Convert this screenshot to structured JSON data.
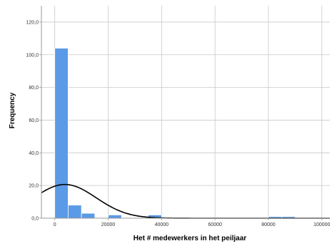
{
  "chart_data": {
    "type": "bar",
    "subtype": "histogram-with-normal-curve",
    "title": "",
    "xlabel": "Het # medewerkers in het peiljaar",
    "ylabel": "Frequency",
    "xlim": [
      -5000,
      103000
    ],
    "ylim": [
      0,
      130
    ],
    "x_ticks": [
      0,
      20000,
      40000,
      60000,
      80000,
      100000
    ],
    "x_tick_labels": [
      "0",
      "20000",
      "40000",
      "60000",
      "80000",
      "100000"
    ],
    "y_ticks": [
      0,
      20,
      40,
      60,
      80,
      100,
      120
    ],
    "y_tick_labels": [
      "0,0",
      "20,0",
      "40,0",
      "60,0",
      "80,0",
      "100,0",
      "120,0"
    ],
    "grid": true,
    "bin_width": 5000,
    "bins": [
      {
        "start": 0,
        "end": 5000,
        "count": 104
      },
      {
        "start": 5000,
        "end": 10000,
        "count": 8
      },
      {
        "start": 10000,
        "end": 15000,
        "count": 3
      },
      {
        "start": 15000,
        "end": 20000,
        "count": 0
      },
      {
        "start": 20000,
        "end": 25000,
        "count": 2
      },
      {
        "start": 25000,
        "end": 30000,
        "count": 0
      },
      {
        "start": 30000,
        "end": 35000,
        "count": 0
      },
      {
        "start": 35000,
        "end": 40000,
        "count": 2
      },
      {
        "start": 40000,
        "end": 45000,
        "count": 0
      },
      {
        "start": 45000,
        "end": 50000,
        "count": 0
      },
      {
        "start": 50000,
        "end": 55000,
        "count": 0
      },
      {
        "start": 55000,
        "end": 60000,
        "count": 0
      },
      {
        "start": 60000,
        "end": 65000,
        "count": 0
      },
      {
        "start": 65000,
        "end": 70000,
        "count": 0
      },
      {
        "start": 70000,
        "end": 75000,
        "count": 0
      },
      {
        "start": 75000,
        "end": 80000,
        "count": 0
      },
      {
        "start": 80000,
        "end": 85000,
        "count": 1
      },
      {
        "start": 85000,
        "end": 90000,
        "count": 1
      }
    ],
    "normal_curve": {
      "mean": 3800,
      "sd": 11700,
      "n": 121
    },
    "colors": {
      "bar": "#5b9ae6",
      "bar_edge": "#ffffff",
      "curve": "#000000",
      "grid": "#c8c8c8",
      "axis": "#999999"
    }
  }
}
